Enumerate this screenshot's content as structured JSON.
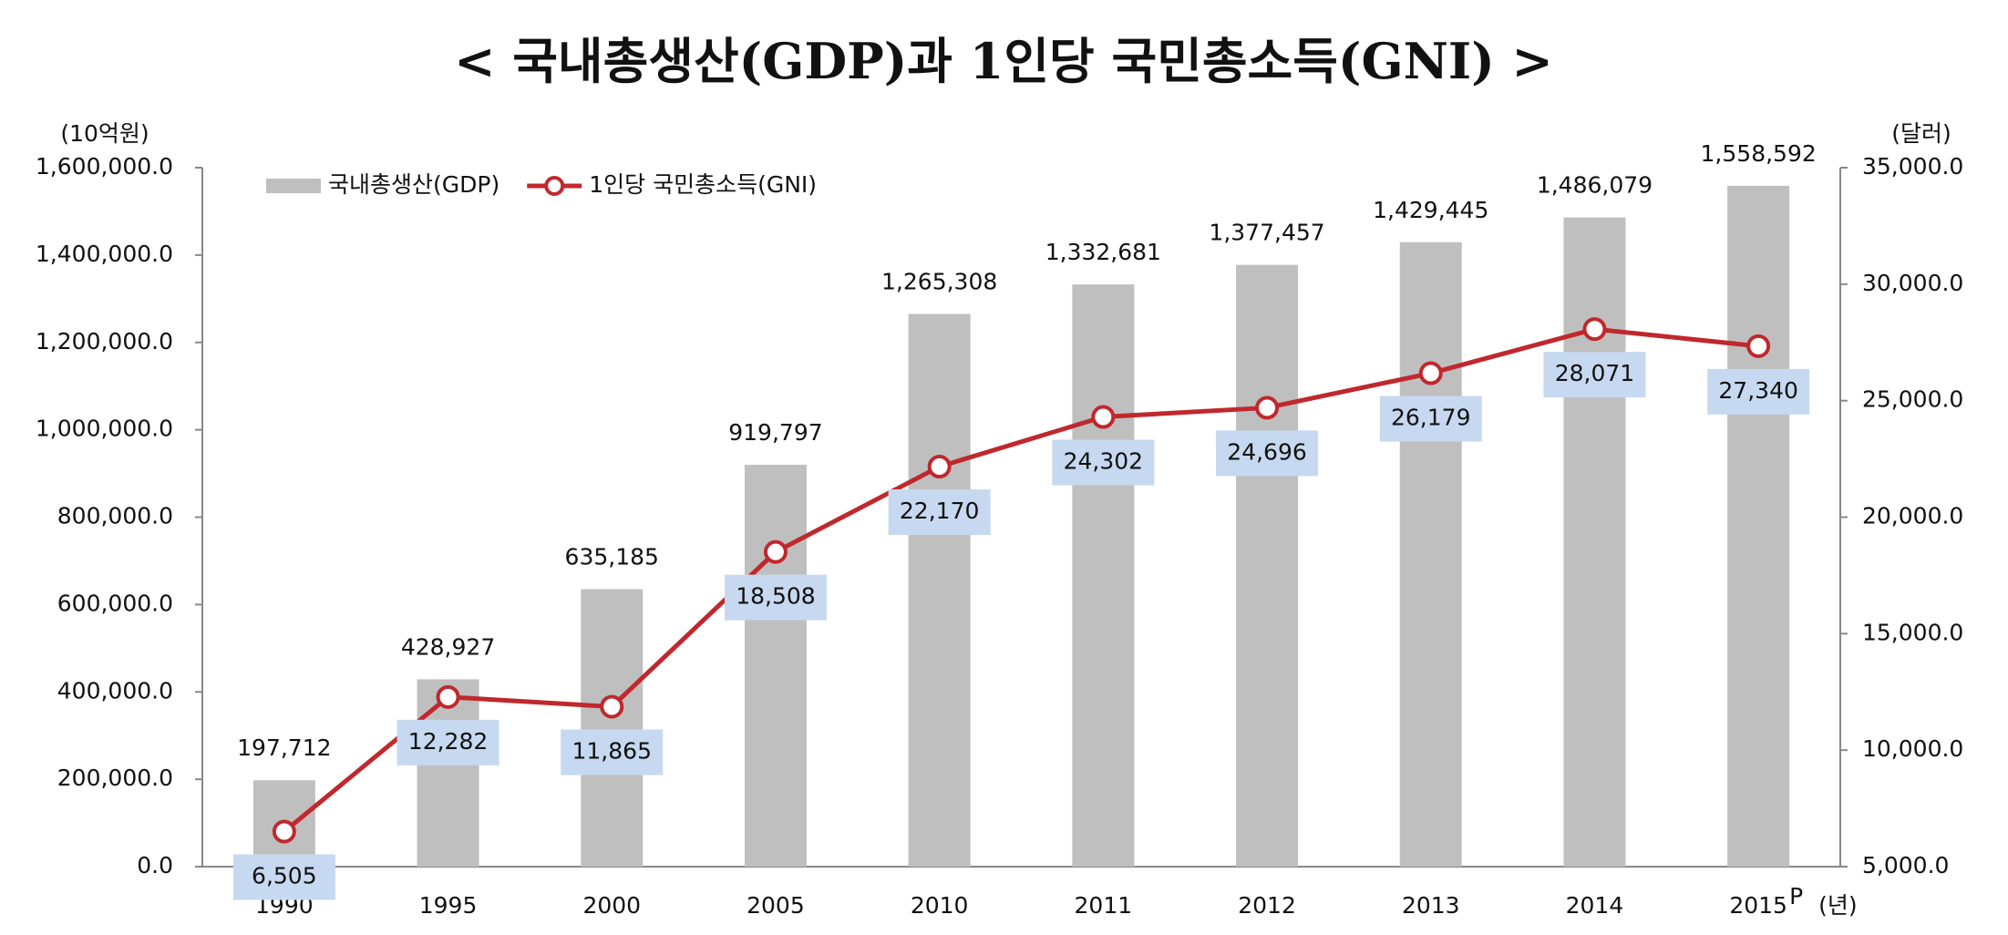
{
  "chart_data": {
    "type": "bar_line",
    "title": "< 국내총생산(GDP)과 1인당 국민총소득(GNI) >",
    "y_unit": "(10억원)",
    "y2_unit": "(달러)",
    "x_unit": "(년)",
    "provisional_mark": "P",
    "categories": [
      "1990",
      "1995",
      "2000",
      "2005",
      "2010",
      "2011",
      "2012",
      "2013",
      "2014",
      "2015"
    ],
    "series": [
      {
        "name": "국내총생산(GDP)",
        "type": "bar",
        "color": "#bfbfbf",
        "values": [
          197712,
          428927,
          635185,
          919797,
          1265308,
          1332681,
          1377457,
          1429445,
          1486079,
          1558592
        ],
        "value_labels": [
          "197,712",
          "428,927",
          "635,185",
          "919,797",
          "1,265,308",
          "1,332,681",
          "1,377,457",
          "1,429,445",
          "1,486,079",
          "1,558,592"
        ]
      },
      {
        "name": "1인당 국민총소득(GNI)",
        "type": "line",
        "axis": "y2",
        "color": "#c0282d",
        "values": [
          6505,
          12282,
          11865,
          18508,
          22170,
          24302,
          24696,
          26179,
          28071,
          27340
        ],
        "value_labels": [
          "6,505",
          "12,282",
          "11,865",
          "18,508",
          "22,170",
          "24,302",
          "24,696",
          "26,179",
          "28,071",
          "27,340"
        ]
      }
    ],
    "ylim": [
      0,
      1600000
    ],
    "yticks": [
      {
        "value": 0,
        "label": "0.0"
      },
      {
        "value": 200000,
        "label": "200,000.0"
      },
      {
        "value": 400000,
        "label": "400,000.0"
      },
      {
        "value": 600000,
        "label": "600,000.0"
      },
      {
        "value": 800000,
        "label": "800,000.0"
      },
      {
        "value": 1000000,
        "label": "1,000,000.0"
      },
      {
        "value": 1200000,
        "label": "1,200,000.0"
      },
      {
        "value": 1400000,
        "label": "1,400,000.0"
      },
      {
        "value": 1600000,
        "label": "1,600,000.0"
      }
    ],
    "y2lim": [
      5000,
      35000
    ],
    "y2ticks": [
      {
        "value": 5000,
        "label": "5,000.0"
      },
      {
        "value": 10000,
        "label": "10,000.0"
      },
      {
        "value": 15000,
        "label": "15,000.0"
      },
      {
        "value": 20000,
        "label": "20,000.0"
      },
      {
        "value": 25000,
        "label": "25,000.0"
      },
      {
        "value": 30000,
        "label": "30,000.0"
      },
      {
        "value": 35000,
        "label": "35,000.0"
      }
    ],
    "grid": false,
    "legend": "top-left",
    "label_box_color": "#c6d9f0"
  }
}
